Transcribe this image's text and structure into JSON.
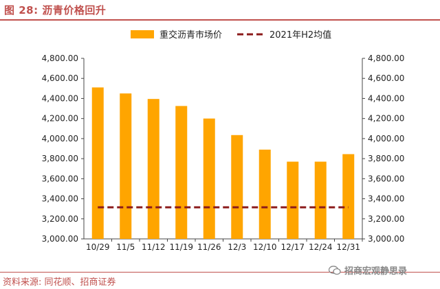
{
  "header": {
    "figure_title": "图 28:  沥青价格回升"
  },
  "footer": {
    "source": "资料来源: 同花顺、招商证券",
    "watermark": "招商宏观静思录"
  },
  "colors": {
    "bar": "#ffa500",
    "avg_line": "#8b1a1a",
    "axis": "#444444",
    "accent": "#c0504d"
  },
  "chart_data": {
    "type": "bar",
    "categories": [
      "10/29",
      "11/5",
      "11/12",
      "11/19",
      "11/26",
      "12/3",
      "12/10",
      "12/17",
      "12/24",
      "12/31"
    ],
    "series": [
      {
        "name": "重交沥青市场价",
        "type": "bar",
        "values": [
          4510,
          4450,
          4395,
          4325,
          4200,
          4035,
          3890,
          3770,
          3770,
          3845
        ]
      },
      {
        "name": "2021年H2均值",
        "type": "line",
        "style": "dashed",
        "values": [
          3315,
          3315,
          3315,
          3315,
          3315,
          3315,
          3315,
          3315,
          3315,
          3315
        ]
      }
    ],
    "ylim": [
      3000,
      4800
    ],
    "yticks": [
      "3,000.00",
      "3,200.00",
      "3,400.00",
      "3,600.00",
      "3,800.00",
      "4,000.00",
      "4,200.00",
      "4,400.00",
      "4,600.00",
      "4,800.00"
    ],
    "secondary_ylim": [
      3000,
      4800
    ],
    "legend_position": "top",
    "grid": false
  }
}
